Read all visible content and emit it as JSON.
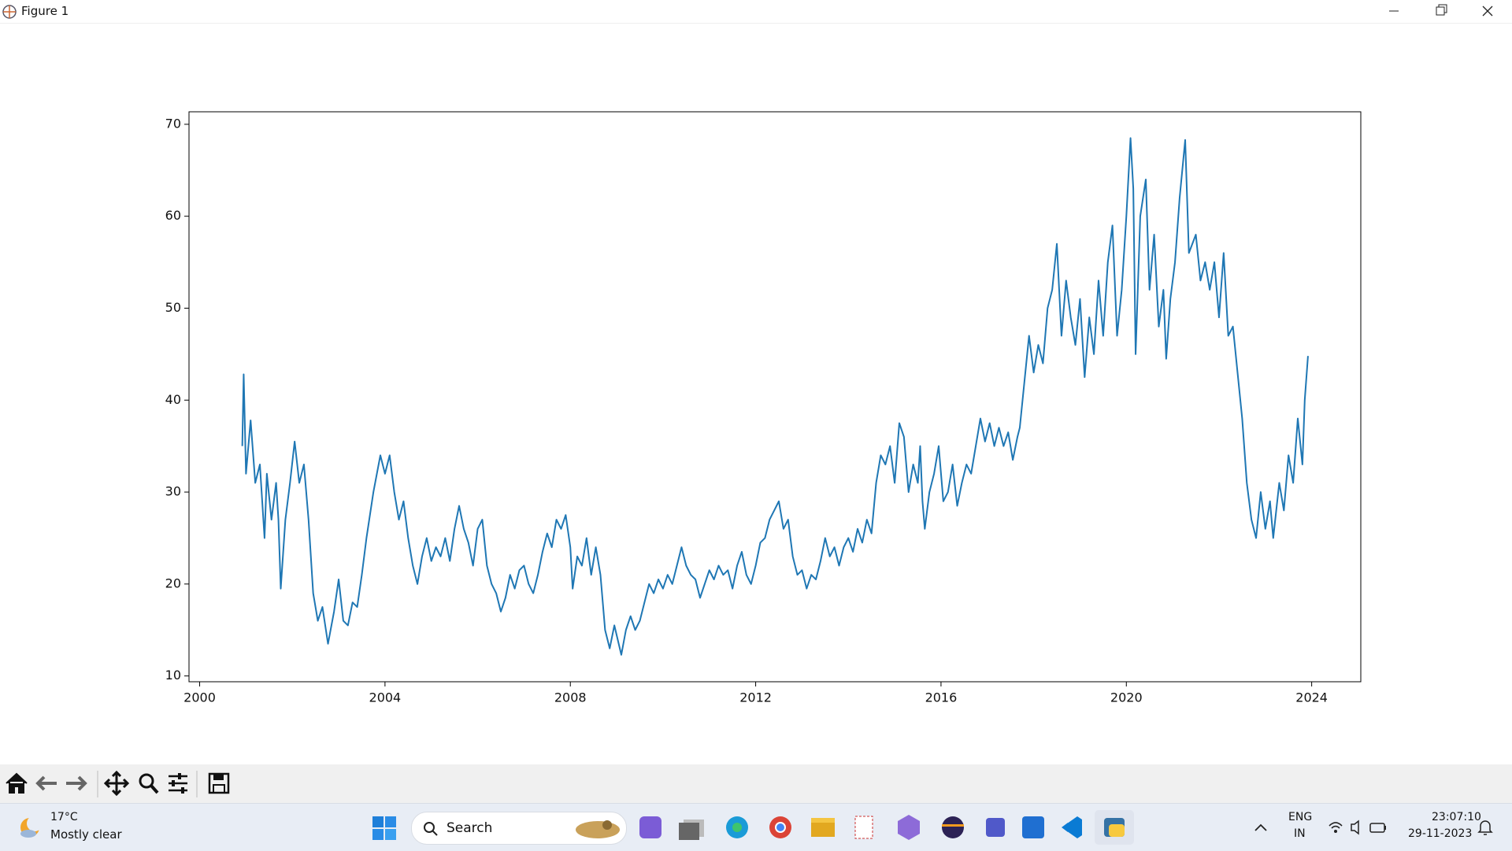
{
  "window": {
    "title": "Figure 1"
  },
  "chart_data": {
    "type": "line",
    "color": "#1f77b4",
    "x": [
      2000.92,
      2000.95,
      2001.0,
      2001.1,
      2001.2,
      2001.3,
      2001.4,
      2001.45,
      2001.55,
      2001.65,
      2001.7,
      2001.75,
      2001.85,
      2001.95,
      2002.05,
      2002.15,
      2002.25,
      2002.35,
      2002.45,
      2002.55,
      2002.65,
      2002.77,
      2002.9,
      2003.0,
      2003.1,
      2003.2,
      2003.3,
      2003.4,
      2003.5,
      2003.6,
      2003.75,
      2003.9,
      2004.0,
      2004.1,
      2004.2,
      2004.3,
      2004.4,
      2004.5,
      2004.6,
      2004.7,
      2004.8,
      2004.9,
      2005.0,
      2005.1,
      2005.2,
      2005.3,
      2005.4,
      2005.5,
      2005.6,
      2005.7,
      2005.8,
      2005.9,
      2006.0,
      2006.1,
      2006.2,
      2006.3,
      2006.4,
      2006.5,
      2006.6,
      2006.7,
      2006.8,
      2006.9,
      2007.0,
      2007.1,
      2007.2,
      2007.3,
      2007.4,
      2007.5,
      2007.6,
      2007.7,
      2007.8,
      2007.9,
      2008.0,
      2008.05,
      2008.15,
      2008.25,
      2008.35,
      2008.45,
      2008.55,
      2008.65,
      2008.75,
      2008.85,
      2008.95,
      2009.1,
      2009.2,
      2009.3,
      2009.4,
      2009.5,
      2009.6,
      2009.7,
      2009.8,
      2009.9,
      2010.0,
      2010.1,
      2010.2,
      2010.3,
      2010.4,
      2010.5,
      2010.6,
      2010.7,
      2010.8,
      2010.9,
      2011.0,
      2011.1,
      2011.2,
      2011.3,
      2011.4,
      2011.5,
      2011.6,
      2011.7,
      2011.8,
      2011.9,
      2012.0,
      2012.1,
      2012.2,
      2012.3,
      2012.4,
      2012.5,
      2012.6,
      2012.7,
      2012.8,
      2012.9,
      2013.0,
      2013.1,
      2013.2,
      2013.3,
      2013.4,
      2013.5,
      2013.6,
      2013.7,
      2013.8,
      2013.9,
      2014.0,
      2014.1,
      2014.2,
      2014.3,
      2014.4,
      2014.5,
      2014.6,
      2014.7,
      2014.8,
      2014.9,
      2015.0,
      2015.1,
      2015.2,
      2015.3,
      2015.4,
      2015.5,
      2015.55,
      2015.6,
      2015.65,
      2015.75,
      2015.85,
      2015.95,
      2016.05,
      2016.15,
      2016.25,
      2016.35,
      2016.45,
      2016.55,
      2016.65,
      2016.75,
      2016.85,
      2016.95,
      2017.05,
      2017.15,
      2017.25,
      2017.35,
      2017.45,
      2017.55,
      2017.65,
      2017.7,
      2017.8,
      2017.9,
      2018.0,
      2018.1,
      2018.2,
      2018.3,
      2018.4,
      2018.5,
      2018.6,
      2018.7,
      2018.8,
      2018.9,
      2019.0,
      2019.1,
      2019.2,
      2019.3,
      2019.4,
      2019.5,
      2019.6,
      2019.7,
      2019.8,
      2019.9,
      2020.0,
      2020.09,
      2020.15,
      2020.2,
      2020.3,
      2020.42,
      2020.5,
      2020.6,
      2020.7,
      2020.8,
      2020.86,
      2020.95,
      2021.05,
      2021.15,
      2021.27,
      2021.35,
      2021.5,
      2021.6,
      2021.7,
      2021.8,
      2021.9,
      2022.0,
      2022.1,
      2022.2,
      2022.3,
      2022.4,
      2022.5,
      2022.6,
      2022.7,
      2022.8,
      2022.9,
      2023.0,
      2023.1,
      2023.17,
      2023.3,
      2023.4,
      2023.5,
      2023.6,
      2023.7,
      2023.8,
      2023.85,
      2023.92
    ],
    "values": [
      35,
      42.8,
      32,
      37.8,
      31,
      33,
      25,
      32,
      27,
      31,
      27,
      19.5,
      27,
      31,
      35.5,
      31,
      33,
      27,
      19,
      16,
      17.5,
      13.5,
      17,
      20.5,
      16,
      15.5,
      18,
      17.5,
      21,
      25,
      30,
      34,
      32,
      34,
      30,
      27,
      29,
      25,
      22,
      20,
      23,
      25,
      22.5,
      24,
      23,
      25,
      22.5,
      26,
      28.5,
      26,
      24.5,
      22,
      26,
      27,
      22,
      20,
      19,
      17,
      18.5,
      21,
      19.5,
      21.5,
      22,
      20,
      19,
      21,
      23.5,
      25.5,
      24,
      27,
      26,
      27.5,
      24,
      19.5,
      23,
      22,
      25,
      21,
      24,
      21,
      15,
      13,
      15.5,
      12.3,
      15,
      16.5,
      15,
      16,
      18,
      20,
      19,
      20.5,
      19.5,
      21,
      20,
      22,
      24,
      22,
      21,
      20.5,
      18.5,
      20,
      21.5,
      20.5,
      22,
      21,
      21.5,
      19.5,
      22,
      23.5,
      21,
      20,
      22,
      24.5,
      25,
      27,
      28,
      29,
      26,
      27,
      23,
      21,
      21.5,
      19.5,
      21,
      20.5,
      22.5,
      25,
      23,
      24,
      22,
      24,
      25,
      23.5,
      26,
      24.5,
      27,
      25.5,
      31,
      34,
      33,
      35,
      31,
      37.5,
      36,
      30,
      33,
      31,
      35,
      29,
      26,
      30,
      32,
      35,
      29,
      30,
      33,
      28.5,
      31,
      33,
      32,
      35,
      38,
      35.5,
      37.5,
      35,
      37,
      35,
      36.5,
      33.5,
      36,
      37,
      42,
      47,
      43,
      46,
      44,
      50,
      52,
      57,
      47,
      53,
      49,
      46,
      51,
      42.5,
      49,
      45,
      53,
      47,
      55,
      59,
      47,
      52,
      60,
      68.5,
      63,
      45,
      60,
      64,
      52,
      58,
      48,
      52,
      44.5,
      51,
      55,
      62,
      68.3,
      56,
      58,
      53,
      55,
      52,
      55,
      49,
      56,
      47,
      48,
      43,
      38,
      31,
      27,
      25,
      30,
      26,
      29,
      25,
      31,
      28,
      34,
      31,
      38,
      33,
      40,
      44.8
    ],
    "xlim": [
      1999.77,
      2025.06
    ],
    "xticks": [
      2000,
      2004,
      2008,
      2012,
      2016,
      2020,
      2024
    ],
    "ylim": [
      9.37,
      71.36
    ],
    "yticks": [
      10,
      20,
      30,
      40,
      50,
      60,
      70
    ]
  },
  "taskbar": {
    "weather": {
      "temperature": "17°C",
      "condition": "Mostly clear"
    },
    "search": "Search",
    "language": {
      "input": "ENG",
      "region": "IN"
    },
    "clock": {
      "time": "23:07:10",
      "date": "29-11-2023"
    }
  }
}
